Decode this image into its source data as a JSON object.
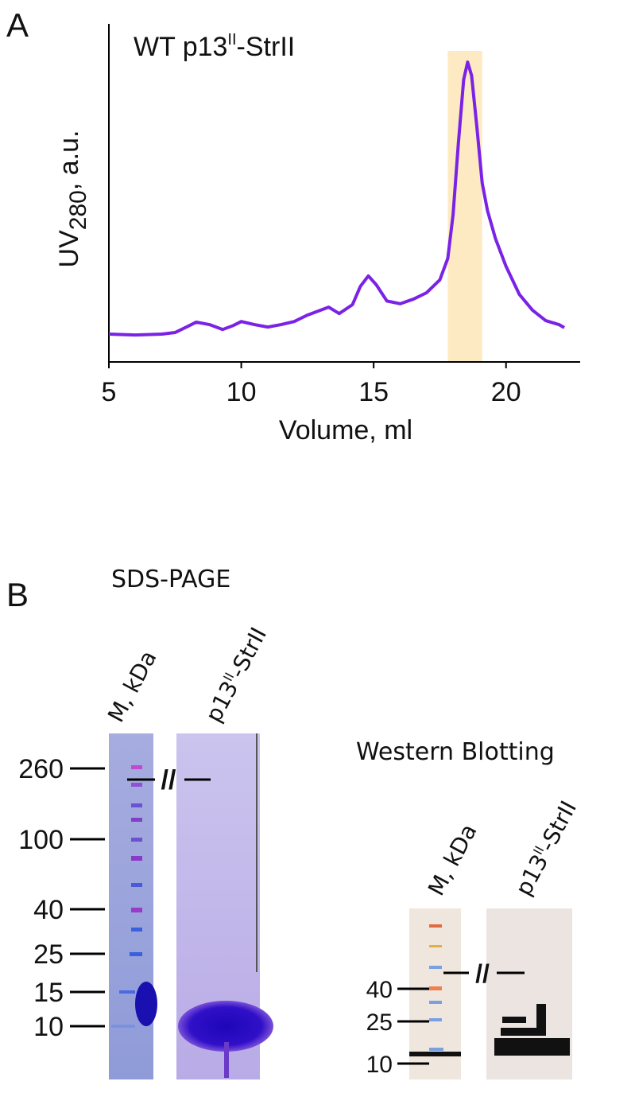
{
  "panel_labels": [
    "A",
    "B"
  ],
  "chart_data": {
    "type": "line",
    "title_parts": [
      "WT p13",
      "II",
      "-StrII"
    ],
    "y_label_parts": [
      "UV",
      "280",
      ", a.u."
    ],
    "x_label": "Volume, ml",
    "x": [
      5,
      6,
      7,
      7.5,
      8,
      8.3,
      8.8,
      9.3,
      9.7,
      10,
      10.5,
      11,
      11.5,
      12,
      12.5,
      13,
      13.3,
      13.7,
      14.2,
      14.5,
      14.8,
      15.1,
      15.5,
      16,
      16.5,
      17,
      17.5,
      17.8,
      18,
      18.2,
      18.4,
      18.55,
      18.7,
      18.9,
      19.1,
      19.3,
      19.6,
      20,
      20.5,
      21,
      21.5,
      22,
      22.2
    ],
    "series": [
      {
        "color": "#7a22e6",
        "values": [
          9.1,
          8.8,
          9.1,
          9.6,
          11.7,
          13.0,
          12.2,
          10.6,
          11.9,
          13.2,
          12.2,
          11.4,
          12.2,
          13.2,
          15.3,
          16.9,
          17.9,
          15.8,
          18.7,
          24.7,
          28.1,
          25.2,
          19.9,
          19.0,
          20.5,
          22.6,
          26.8,
          33.8,
          48.1,
          71.4,
          92.2,
          97.9,
          93.5,
          76.6,
          58.4,
          49.4,
          40.3,
          31.2,
          22.1,
          16.9,
          13.5,
          12.2,
          11.2
        ]
      }
    ],
    "highlight": [
      17.8,
      19.1
    ],
    "highlight_color": "#fdeac2",
    "xlim": [
      5,
      22.8
    ],
    "xticks": [
      5,
      10,
      15,
      20
    ],
    "ylim": [
      0,
      100
    ]
  },
  "sds_page": {
    "title": "SDS-PAGE",
    "lane_m": "M, kDa",
    "lane_sample_parts": [
      "p13",
      "II",
      "-StrII"
    ],
    "break": "//",
    "markers": [
      260,
      100,
      40,
      25,
      15,
      10
    ]
  },
  "western": {
    "title": "Western Blotting",
    "lane_m": "M, kDa",
    "lane_sample_parts": [
      "p13",
      "II",
      "-StrII"
    ],
    "break": "//",
    "markers": [
      40,
      25,
      10
    ]
  }
}
